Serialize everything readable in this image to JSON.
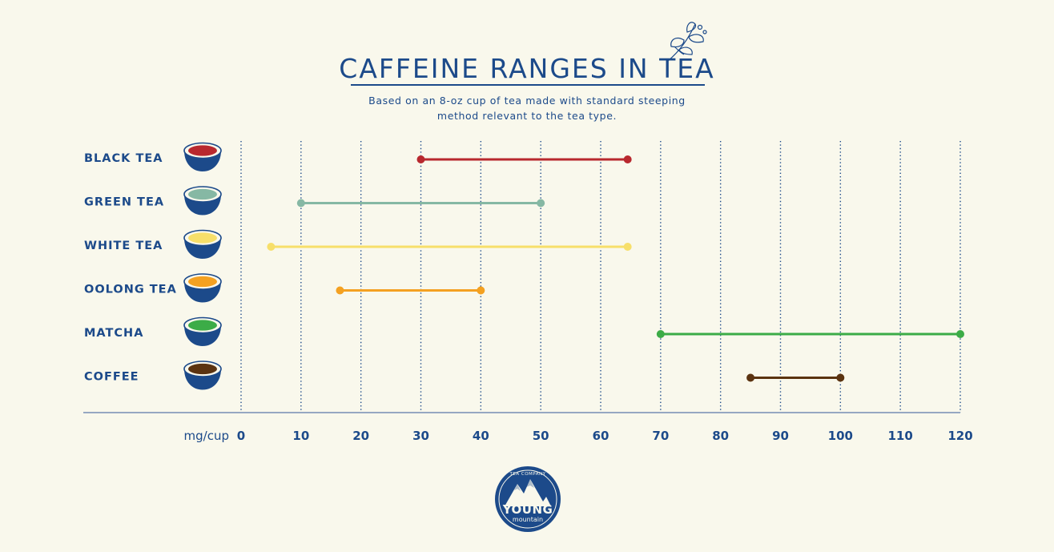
{
  "header": {
    "title": "CAFFEINE RANGES IN TEA",
    "subtitle_line1": "Based on an 8-oz cup of tea made with standard steeping",
    "subtitle_line2": "method relevant to the tea type."
  },
  "logo": {
    "top_text": "TEA COMPANY",
    "main_text": "YOUNG",
    "sub_text": "mountain"
  },
  "decor": {
    "leaf": "tea-leaf-sprig-icon"
  },
  "chart_data": {
    "type": "range",
    "xlabel": "mg/cup",
    "xlim": [
      0,
      120
    ],
    "xticks": [
      0,
      10,
      20,
      30,
      40,
      50,
      60,
      70,
      80,
      90,
      100,
      110,
      120
    ],
    "grid": "vertical-dotted",
    "series": [
      {
        "name": "BLACK TEA",
        "min": 30,
        "max": 64.5,
        "color": "#b8282e",
        "cup_icon": "tea-cup-icon"
      },
      {
        "name": "GREEN TEA",
        "min": 10,
        "max": 50,
        "color": "#86b8a4",
        "cup_icon": "tea-cup-icon"
      },
      {
        "name": "WHITE TEA",
        "min": 5,
        "max": 64.5,
        "color": "#f7df6a",
        "cup_icon": "tea-cup-icon"
      },
      {
        "name": "OOLONG TEA",
        "min": 16.5,
        "max": 40,
        "color": "#f4a121",
        "cup_icon": "tea-cup-icon"
      },
      {
        "name": "MATCHA",
        "min": 70,
        "max": 120,
        "color": "#3cac47",
        "cup_icon": "tea-cup-icon"
      },
      {
        "name": "COFFEE",
        "min": 85,
        "max": 100,
        "color": "#5b3310",
        "cup_icon": "coffee-cup-icon"
      }
    ]
  }
}
